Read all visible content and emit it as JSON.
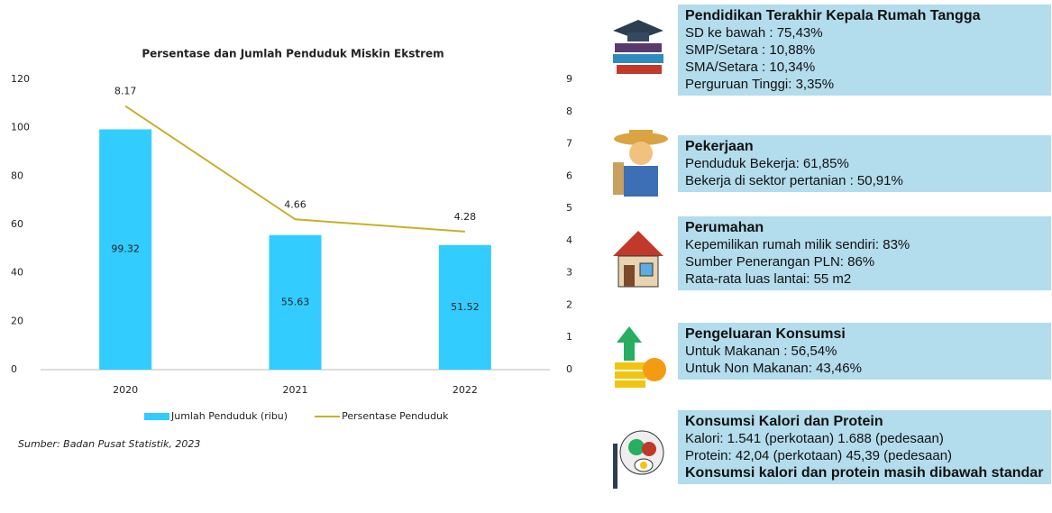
{
  "chart_data": {
    "type": "bar",
    "title": "Persentase dan Jumlah Penduduk Miskin Ekstrem",
    "categories": [
      "2020",
      "2021",
      "2022"
    ],
    "series": [
      {
        "name": "Jumlah Penduduk (ribu)",
        "color": "#33ccff",
        "values": [
          99.32,
          55.63,
          51.52
        ]
      },
      {
        "name": "Persentase Penduduk",
        "color": "#c8b02a",
        "values": [
          8.17,
          4.66,
          4.28
        ],
        "axis": "y2",
        "type": "line"
      }
    ],
    "ylim": [
      0,
      120
    ],
    "yticks": [
      0,
      20,
      40,
      60,
      80,
      100,
      120
    ],
    "y2lim": [
      0,
      9
    ],
    "y2ticks": [
      0,
      1,
      2,
      3,
      4,
      5,
      6,
      7,
      8,
      9
    ],
    "grid": false,
    "legend": "bottom",
    "source": "Sumber: Badan Pusat Statistik, 2023"
  },
  "panels": [
    {
      "title": "Pendidikan Terakhir Kepala Rumah Tangga",
      "lines": [
        "SD ke bawah : 75,43%",
        "SMP/Setara : 10,88%",
        "SMA/Setara : 10,34%",
        "Perguruan Tinggi: 3,35%"
      ]
    },
    {
      "title": "Pekerjaan",
      "lines": [
        "Penduduk  Bekerja: 61,85%",
        "Bekerja di sektor pertanian : 50,91%"
      ]
    },
    {
      "title": "Perumahan",
      "lines": [
        "Kepemilikan rumah milik sendiri: 83%",
        "Sumber Penerangan PLN: 86%",
        "Rata-rata luas lantai: 55 m2"
      ]
    },
    {
      "title": "Pengeluaran Konsumsi",
      "lines": [
        "Untuk  Makanan : 56,54%",
        "Untuk  Non Makanan: 43,46%"
      ]
    },
    {
      "title": "Konsumsi Kalori dan Protein",
      "lines": [
        "Kalori: 1.541 (perkotaan) 1.688 (pedesaan)",
        "Protein: 42,04 (perkotaan) 45,39 (pedesaan)"
      ],
      "note": "Konsumsi kalori dan protein masih dibawah standar"
    }
  ]
}
